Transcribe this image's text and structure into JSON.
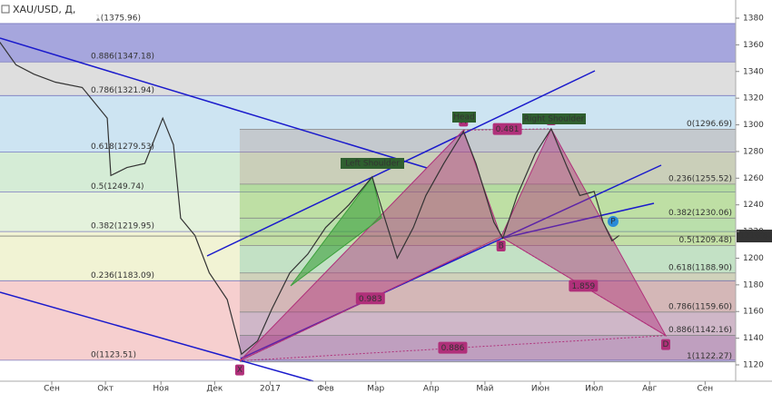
{
  "chart_data": {
    "type": "line",
    "title": "XAU/USD, Д,",
    "x": [
      -29,
      -20,
      -10,
      2,
      17,
      31,
      33,
      42,
      52,
      62,
      68,
      72,
      80,
      88,
      98,
      106,
      115,
      123,
      133,
      143,
      153,
      166,
      179,
      186,
      193,
      202,
      209,
      219,
      230,
      237,
      247,
      252,
      260,
      270,
      279,
      288,
      295,
      303,
      308,
      313,
      317
    ],
    "values": [
      1362,
      1345,
      1338,
      1332,
      1328,
      1305,
      1262,
      1268,
      1271,
      1305,
      1285,
      1230,
      1217,
      1189,
      1169,
      1128,
      1138,
      1162,
      1189,
      1203,
      1223,
      1240,
      1261,
      1230,
      1200,
      1223,
      1247,
      1271,
      1295,
      1271,
      1227,
      1215,
      1247,
      1278,
      1297,
      1268,
      1247,
      1250,
      1227,
      1213,
      1217
    ],
    "color": "#333333",
    "xlim": [
      -29,
      382
    ],
    "xticks": [
      {
        "value": 0,
        "label": "Сен"
      },
      {
        "value": 30,
        "label": "Окт"
      },
      {
        "value": 61,
        "label": "Ноя"
      },
      {
        "value": 91,
        "label": "Дек"
      },
      {
        "value": 122,
        "label": "2017"
      },
      {
        "value": 153,
        "label": "Фев"
      },
      {
        "value": 181,
        "label": "Мар"
      },
      {
        "value": 212,
        "label": "Апр"
      },
      {
        "value": 242,
        "label": "Май"
      },
      {
        "value": 273,
        "label": "Июн"
      },
      {
        "value": 303,
        "label": "Июл"
      },
      {
        "value": 334,
        "label": "Авг"
      },
      {
        "value": 365,
        "label": "Сен"
      }
    ],
    "ylim": [
      1120,
      1380
    ],
    "yticks": [
      1120,
      1140,
      1160,
      1180,
      1200,
      1220,
      1240,
      1260,
      1280,
      1300,
      1320,
      1340,
      1360,
      1380
    ],
    "last_price": 1216.62,
    "fib_left": {
      "xlim": [
        -29,
        382
      ],
      "levels": [
        {
          "value": 1375.96,
          "label": "1(1375.96)"
        },
        {
          "value": 1347.18,
          "label": "0.886(1347.18)"
        },
        {
          "value": 1321.94,
          "label": "0.786(1321.94)"
        },
        {
          "value": 1279.53,
          "label": "0.618(1279.53)"
        },
        {
          "value": 1249.74,
          "label": "0.5(1249.74)"
        },
        {
          "value": 1219.95,
          "label": "0.382(1219.95)"
        },
        {
          "value": 1183.09,
          "label": "0.236(1183.09)"
        },
        {
          "value": 1123.51,
          "label": "0(1123.51)"
        }
      ],
      "band_colors": [
        "#a6a6dd",
        "#dedede",
        "#cde4f2",
        "#d5ecd6",
        "#e4f2dc",
        "#f1f3d4",
        "#f6cfcf"
      ]
    },
    "fib_right": {
      "xlim": [
        105,
        382
      ],
      "levels": [
        {
          "value": 1296.69,
          "label": "0(1296.69)"
        },
        {
          "value": 1255.52,
          "label": "0.236(1255.52)"
        },
        {
          "value": 1230.06,
          "label": "0.382(1230.06)"
        },
        {
          "value": 1209.48,
          "label": "0.5(1209.48)"
        },
        {
          "value": 1188.9,
          "label": "0.618(1188.90)"
        },
        {
          "value": 1159.6,
          "label": "0.786(1159.60)"
        },
        {
          "value": 1142.16,
          "label": "0.886(1142.16)"
        },
        {
          "value": 1122.27,
          "label": "1(1122.27)"
        }
      ],
      "band_colors": [
        "rgba(170,120,100,0.25)",
        "rgba(120,190,60,0.35)",
        "rgba(90,180,60,0.3)",
        "rgba(60,170,150,0.25)",
        "rgba(110,110,110,0.25)",
        "rgba(90,110,180,0.25)",
        "rgba(90,70,160,0.35)"
      ]
    },
    "harmonic": {
      "color": "#b0307a",
      "points": [
        {
          "label": "X",
          "x": 105,
          "price": 1123
        },
        {
          "label": "A",
          "x": 230,
          "price": 1296
        },
        {
          "label": "B",
          "x": 251,
          "price": 1216
        },
        {
          "label": "C",
          "x": 279,
          "price": 1297
        },
        {
          "label": "D",
          "x": 343,
          "price": 1142
        }
      ],
      "ratios": [
        "0.983",
        "0.481",
        "1.859",
        "0.886"
      ]
    },
    "shoulders": {
      "color": "#3aa03a",
      "labels": [
        "Left Shoulder",
        "Head",
        "Right Shoulder"
      ]
    },
    "marker": "P"
  }
}
